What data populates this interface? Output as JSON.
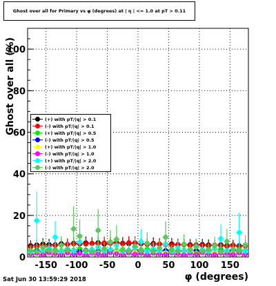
{
  "title": "Ghost over all for Primary vs φ (degrees) at | η | <= 1.0 at pT > 0.11",
  "timestamp": "Sat Jun 30 13:59:29 2018",
  "chart_data": {
    "type": "scatter",
    "xlabel": "φ (degrees)",
    "ylabel": "Ghost over all (%)",
    "xlim": [
      -180,
      180
    ],
    "ylim": [
      0,
      110
    ],
    "x_ticks": [
      "-150",
      "-100",
      "-50",
      "0",
      "50",
      "100",
      "150"
    ],
    "y_ticks": [
      "0",
      "20",
      "40",
      "60",
      "80",
      "100"
    ],
    "grid": true,
    "legend_position": "left-middle",
    "x": [
      -175,
      -165,
      -155,
      -145,
      -135,
      -125,
      -115,
      -105,
      -95,
      -85,
      -75,
      -65,
      -55,
      -45,
      -35,
      -25,
      -15,
      -5,
      5,
      15,
      25,
      35,
      45,
      55,
      65,
      75,
      85,
      95,
      105,
      115,
      125,
      135,
      145,
      155,
      165,
      175
    ],
    "series": [
      {
        "name": "(+) with pT/|q| > 0.1",
        "color": "#000000",
        "values": [
          5.5,
          5.8,
          6.2,
          6.0,
          5.9,
          6.4,
          6.1,
          6.6,
          6.3,
          6.8,
          6.5,
          6.9,
          6.2,
          6.7,
          7.0,
          6.6,
          6.4,
          6.8,
          6.3,
          6.1,
          6.5,
          6.2,
          6.0,
          6.3,
          5.8,
          6.1,
          5.9,
          5.7,
          6.0,
          5.8,
          5.6,
          5.9,
          5.5,
          5.7,
          5.4,
          5.6
        ]
      },
      {
        "name": "(-) with pT/|q| > 0.1",
        "color": "#ff0000",
        "values": [
          4.8,
          5.0,
          5.4,
          5.2,
          5.6,
          5.8,
          6.0,
          6.3,
          6.5,
          6.2,
          6.6,
          6.4,
          6.8,
          6.5,
          6.7,
          6.3,
          6.9,
          6.6,
          6.4,
          6.2,
          6.0,
          6.3,
          5.9,
          5.7,
          6.1,
          5.8,
          5.5,
          5.9,
          5.6,
          5.3,
          5.7,
          5.4,
          5.2,
          5.5,
          5.0,
          5.3
        ]
      },
      {
        "name": "(+) with pT/|q| > 0.5",
        "color": "#00ee00",
        "values": [
          3.2,
          3.5,
          3.0,
          3.8,
          3.4,
          3.1,
          3.6,
          3.3,
          3.9,
          3.0,
          3.5,
          3.2,
          3.7,
          3.4,
          3.1,
          3.6,
          3.3,
          3.0,
          3.5,
          3.8,
          3.2,
          3.4,
          3.1,
          3.6,
          3.0,
          3.3,
          3.7,
          3.2,
          3.5,
          3.0,
          3.4,
          3.8,
          3.1,
          3.3,
          3.6,
          3.2
        ]
      },
      {
        "name": "(-) with pT/|q| > 0.5",
        "color": "#0000ff",
        "values": [
          2.6,
          2.9,
          2.4,
          3.1,
          2.7,
          2.5,
          3.0,
          2.8,
          2.6,
          3.2,
          2.7,
          2.4,
          2.9,
          3.1,
          2.5,
          2.8,
          2.6,
          3.0,
          2.7,
          2.4,
          2.9,
          2.6,
          3.1,
          2.5,
          2.8,
          2.7,
          2.4,
          3.0,
          2.6,
          2.9,
          2.5,
          2.8,
          2.6,
          3.1,
          2.7,
          2.5
        ]
      },
      {
        "name": "(+) with pT/|q| > 1.0",
        "color": "#ffff00",
        "values": [
          2.0,
          2.4,
          1.8,
          2.6,
          2.2,
          1.9,
          2.5,
          2.1,
          1.7,
          2.7,
          2.3,
          2.0,
          2.4,
          1.8,
          2.6,
          2.2,
          1.9,
          2.5,
          2.1,
          2.3,
          1.8,
          2.6,
          2.0,
          2.4,
          1.9,
          2.2,
          2.5,
          1.8,
          2.3,
          2.1,
          2.6,
          1.9,
          2.4,
          2.0,
          2.2,
          2.5
        ]
      },
      {
        "name": "(-) with pT/|q| > 1.0",
        "color": "#ff00ff",
        "values": [
          1.5,
          1.8,
          1.2,
          2.0,
          1.6,
          1.3,
          1.9,
          1.4,
          1.7,
          1.1,
          1.8,
          1.5,
          1.2,
          2.0,
          1.6,
          1.3,
          1.9,
          1.4,
          1.7,
          1.2,
          1.8,
          1.5,
          1.3,
          1.9,
          1.6,
          1.1,
          1.7,
          1.4,
          2.0,
          1.5,
          1.2,
          1.8,
          1.6,
          1.3,
          1.9,
          1.4
        ]
      },
      {
        "name": "(+) with pT/|q| > 2.0",
        "color": "#00ffff",
        "values": [
          2.5,
          17.5,
          3.0,
          4.2,
          9.6,
          2.8,
          4.0,
          3.1,
          7.2,
          2.6,
          3.4,
          4.8,
          2.9,
          3.6,
          5.5,
          2.7,
          3.3,
          4.6,
          7.4,
          2.8,
          3.9,
          3.0,
          6.2,
          2.6,
          4.4,
          3.2,
          2.9,
          5.0,
          3.5,
          2.7,
          4.1,
          8.8,
          3.0,
          3.6,
          11.8,
          2.8
        ]
      },
      {
        "name": "(-) with pT/|q| > 2.0",
        "color": "#5ac85a",
        "values": [
          3.0,
          2.6,
          4.5,
          3.2,
          2.8,
          5.6,
          3.4,
          13.5,
          10.0,
          3.0,
          2.5,
          12.8,
          4.0,
          7.2,
          8.5,
          3.3,
          2.9,
          5.2,
          3.1,
          6.6,
          2.7,
          4.3,
          9.5,
          3.2,
          2.8,
          6.1,
          3.5,
          4.8,
          2.9,
          3.6,
          5.4,
          2.6,
          7.5,
          3.8,
          3.0,
          5.8
        ]
      }
    ]
  }
}
